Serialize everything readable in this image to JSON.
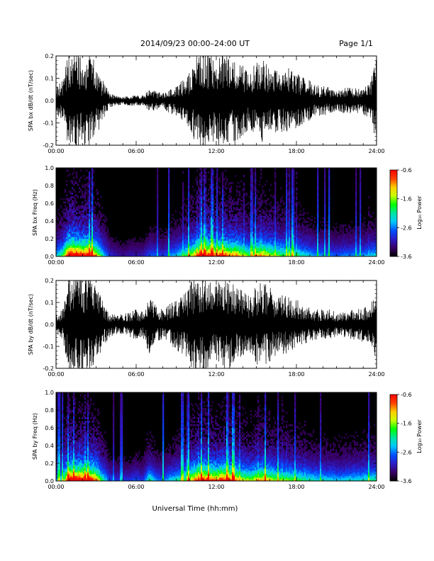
{
  "header": {
    "title": "2014/09/23  00:00–24:00 UT",
    "page": "Page 1/1"
  },
  "x_axis_label": "Universal Time (hh:mm)",
  "x_tick_labels": [
    "00:00",
    "06:00",
    "12:00",
    "18:00",
    "24:00"
  ],
  "colorbar": {
    "label": "Log₁₀ Power",
    "tick_labels": [
      "-0.6",
      "-1.6",
      "-2.6",
      "-3.6"
    ],
    "range": [
      -3.6,
      -0.6
    ],
    "colormap": [
      "#000000",
      "#3a0066",
      "#2a1ac8",
      "#0050ff",
      "#00c8ff",
      "#00e6a0",
      "#00ff00",
      "#c8ff00",
      "#ffd000",
      "#ff4000",
      "#ff0000"
    ]
  },
  "chart_data": [
    {
      "type": "line",
      "name": "SPA bx dB/dt",
      "ylabel": "SPA bx dB/dt (nT/sec)",
      "xlim": [
        0,
        24
      ],
      "ylim": [
        -0.2,
        0.2
      ],
      "y_tick_labels": [
        "0.2",
        "0.1",
        "0.0",
        "-0.1",
        "-0.2"
      ],
      "x_hours": [
        0,
        0.5,
        1.0,
        1.5,
        2.0,
        2.5,
        3.0,
        3.5,
        4.0,
        4.5,
        5.0,
        5.5,
        6.0,
        6.5,
        7.0,
        7.5,
        8.0,
        8.5,
        9.0,
        9.5,
        10.0,
        10.5,
        11.0,
        11.5,
        12.0,
        12.5,
        13.0,
        13.5,
        14.0,
        14.5,
        15.0,
        15.5,
        16.0,
        16.5,
        17.0,
        17.5,
        18.0,
        18.5,
        19.0,
        19.5,
        20.0,
        20.5,
        21.0,
        21.5,
        22.0,
        22.5,
        23.0,
        23.5,
        24.0
      ],
      "envelope_amplitude": [
        0.05,
        0.09,
        0.2,
        0.2,
        0.18,
        0.2,
        0.14,
        0.08,
        0.03,
        0.02,
        0.015,
        0.02,
        0.02,
        0.02,
        0.04,
        0.04,
        0.03,
        0.05,
        0.06,
        0.08,
        0.11,
        0.18,
        0.2,
        0.2,
        0.17,
        0.2,
        0.16,
        0.18,
        0.14,
        0.11,
        0.16,
        0.18,
        0.14,
        0.13,
        0.12,
        0.13,
        0.11,
        0.09,
        0.08,
        0.06,
        0.06,
        0.05,
        0.04,
        0.05,
        0.05,
        0.05,
        0.06,
        0.07,
        0.2
      ]
    },
    {
      "type": "heatmap",
      "name": "SPA bx Freq",
      "ylabel": "SPA bx Freq (Hz)",
      "xlim": [
        0,
        24
      ],
      "ylim": [
        0,
        1.0
      ],
      "y_tick_labels": [
        "1.0",
        "0.8",
        "0.6",
        "0.4",
        "0.2",
        "0.0"
      ],
      "value_units": "Log10 Power",
      "time_activity": [
        0.35,
        0.5,
        0.95,
        0.9,
        0.85,
        0.9,
        0.7,
        0.4,
        0.2,
        0.15,
        0.12,
        0.15,
        0.15,
        0.15,
        0.25,
        0.25,
        0.2,
        0.3,
        0.35,
        0.45,
        0.55,
        0.75,
        0.85,
        0.85,
        0.75,
        0.85,
        0.7,
        0.75,
        0.6,
        0.5,
        0.65,
        0.7,
        0.6,
        0.55,
        0.5,
        0.5,
        0.45,
        0.4,
        0.35,
        0.3,
        0.3,
        0.28,
        0.25,
        0.28,
        0.28,
        0.3,
        0.3,
        0.35,
        0.4
      ]
    },
    {
      "type": "line",
      "name": "SPA by dB/dt",
      "ylabel": "SPA by dB/dt (nT/sec)",
      "xlim": [
        0,
        24
      ],
      "ylim": [
        -0.2,
        0.2
      ],
      "y_tick_labels": [
        "0.2",
        "0.1",
        "0.0",
        "-0.1",
        "-0.2"
      ],
      "x_hours": [
        0,
        0.5,
        1.0,
        1.5,
        2.0,
        2.5,
        3.0,
        3.5,
        4.0,
        4.5,
        5.0,
        5.5,
        6.0,
        6.5,
        7.0,
        7.5,
        8.0,
        8.5,
        9.0,
        9.5,
        10.0,
        10.5,
        11.0,
        11.5,
        12.0,
        12.5,
        13.0,
        13.5,
        14.0,
        14.5,
        15.0,
        15.5,
        16.0,
        16.5,
        17.0,
        17.5,
        18.0,
        18.5,
        19.0,
        19.5,
        20.0,
        20.5,
        21.0,
        21.5,
        22.0,
        22.5,
        23.0,
        23.5,
        24.0
      ],
      "envelope_amplitude": [
        0.04,
        0.06,
        0.2,
        0.2,
        0.2,
        0.2,
        0.16,
        0.09,
        0.05,
        0.04,
        0.04,
        0.05,
        0.06,
        0.05,
        0.12,
        0.07,
        0.06,
        0.08,
        0.1,
        0.12,
        0.17,
        0.2,
        0.2,
        0.18,
        0.17,
        0.2,
        0.17,
        0.15,
        0.13,
        0.11,
        0.16,
        0.17,
        0.15,
        0.12,
        0.12,
        0.11,
        0.1,
        0.08,
        0.07,
        0.06,
        0.06,
        0.06,
        0.05,
        0.05,
        0.06,
        0.06,
        0.07,
        0.07,
        0.17
      ]
    },
    {
      "type": "heatmap",
      "name": "SPA by Freq",
      "ylabel": "SPA by Freq (Hz)",
      "xlim": [
        0,
        24
      ],
      "ylim": [
        0,
        1.0
      ],
      "y_tick_labels": [
        "1.0",
        "0.8",
        "0.6",
        "0.4",
        "0.2",
        "0.0"
      ],
      "value_units": "Log10 Power",
      "time_activity": [
        0.3,
        0.45,
        0.95,
        0.9,
        0.9,
        0.9,
        0.75,
        0.45,
        0.25,
        0.2,
        0.2,
        0.2,
        0.25,
        0.2,
        0.45,
        0.3,
        0.25,
        0.35,
        0.4,
        0.45,
        0.6,
        0.8,
        0.85,
        0.8,
        0.75,
        0.85,
        0.75,
        0.7,
        0.6,
        0.55,
        0.65,
        0.7,
        0.62,
        0.55,
        0.55,
        0.52,
        0.5,
        0.45,
        0.42,
        0.38,
        0.38,
        0.38,
        0.35,
        0.35,
        0.38,
        0.38,
        0.4,
        0.42,
        0.45
      ]
    }
  ]
}
